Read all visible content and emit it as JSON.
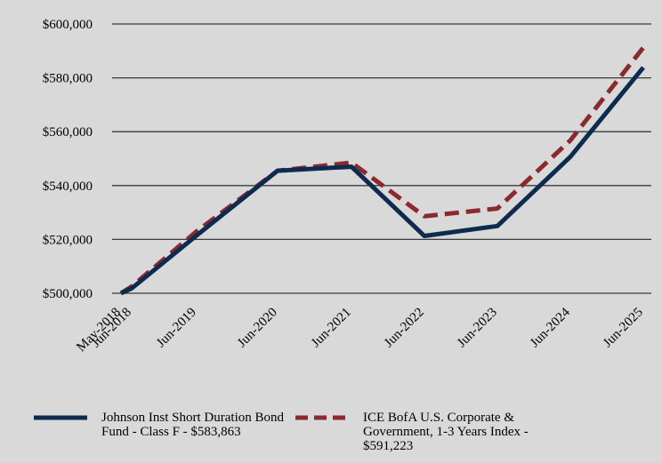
{
  "chart_data": {
    "type": "line",
    "categories": [
      "May-2018",
      "Jun-2018",
      "Jun-2019",
      "Jun-2020",
      "Jun-2021",
      "Jun-2022",
      "Jun-2023",
      "Jun-2024",
      "Jun-2025"
    ],
    "ylim": [
      500000,
      600000
    ],
    "yticks": [
      "$500,000",
      "$520,000",
      "$540,000",
      "$560,000",
      "$580,000",
      "$600,000"
    ],
    "ytick_values": [
      500000,
      520000,
      540000,
      560000,
      580000,
      600000
    ],
    "grid": true,
    "legend_position": "bottom",
    "series": [
      {
        "name": "Johnson Inst Short Duration Bond Fund - Class F - $583,863",
        "color": "#0d2b4e",
        "style": "solid",
        "values": [
          500000,
          501800,
          521500,
          545500,
          547000,
          521300,
          525000,
          550700,
          583863
        ]
      },
      {
        "name": "ICE BofA U.S. Corporate & Government, 1-3 Years Index - $591,223",
        "color": "#8b2a2e",
        "style": "dashed",
        "values": [
          500000,
          502500,
          523000,
          545500,
          548500,
          528600,
          531500,
          556800,
          591223
        ]
      }
    ]
  }
}
